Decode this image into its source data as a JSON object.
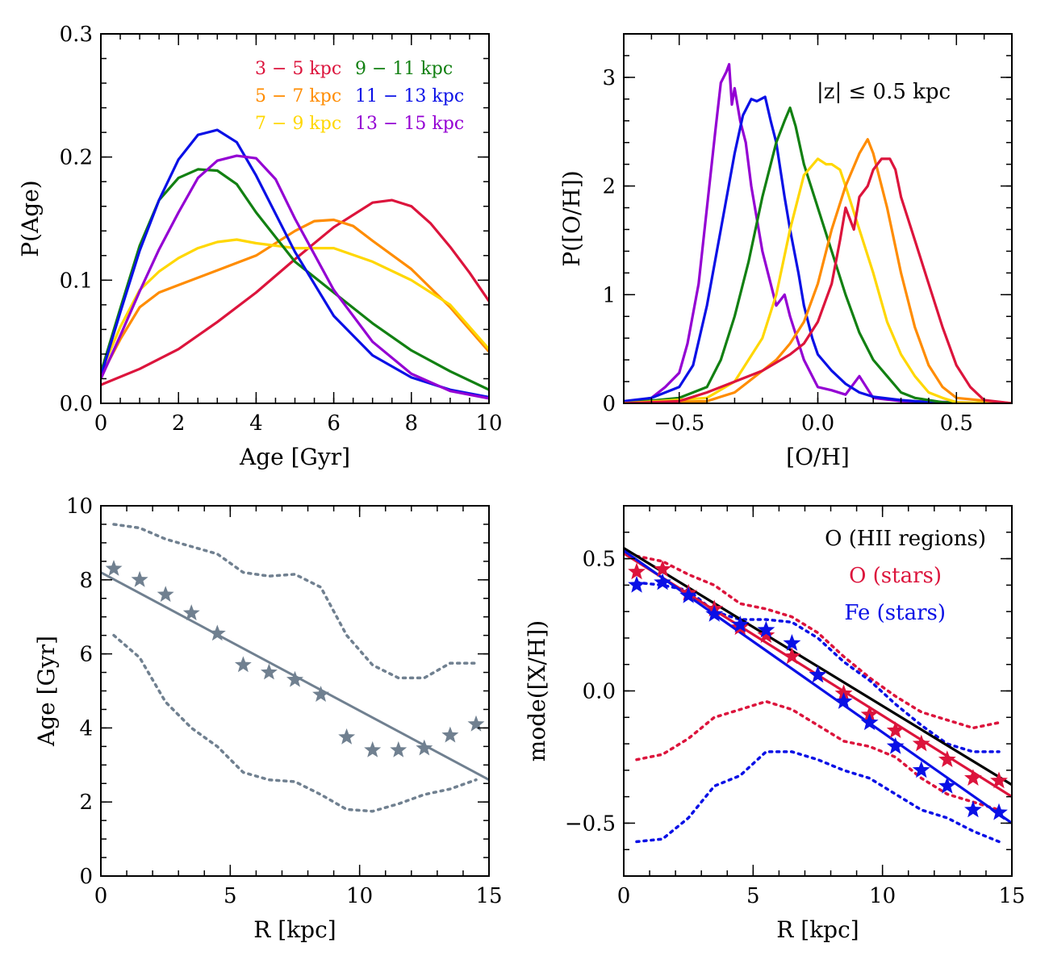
{
  "colors": {
    "crimson": "#dc143c",
    "green": "#128012",
    "orange": "#ff8c00",
    "blue": "#0a10e6",
    "gold": "#ffd700",
    "purple": "#9400d3",
    "slate": "#708090",
    "black": "#000000"
  },
  "chart_data": [
    {
      "id": "age_dist",
      "type": "line",
      "xlabel": "Age [Gyr]",
      "ylabel": "P(Age)",
      "xlim": [
        0,
        10
      ],
      "ylim": [
        0,
        0.3
      ],
      "xticks": [
        0,
        2,
        4,
        6,
        8,
        10
      ],
      "xticklabels": [
        "0",
        "2",
        "4",
        "6",
        "8",
        "10"
      ],
      "yticks": [
        0,
        0.1,
        0.2,
        0.3
      ],
      "yticklabels": [
        "0.0",
        "0.1",
        "0.2",
        "0.3"
      ],
      "legend": [
        {
          "label": "3 − 5 kpc",
          "color": "crimson"
        },
        {
          "label": "9 − 11 kpc",
          "color": "green"
        },
        {
          "label": "5 − 7 kpc",
          "color": "orange"
        },
        {
          "label": "11 − 13 kpc",
          "color": "blue"
        },
        {
          "label": "7 − 9 kpc",
          "color": "gold"
        },
        {
          "label": "13 − 15 kpc",
          "color": "purple"
        }
      ],
      "series": [
        {
          "color": "crimson",
          "x": [
            0,
            1,
            2,
            3,
            4,
            5,
            6,
            7,
            7.5,
            8,
            8.5,
            9,
            9.5,
            10
          ],
          "y": [
            0.015,
            0.028,
            0.044,
            0.066,
            0.09,
            0.117,
            0.143,
            0.163,
            0.165,
            0.16,
            0.146,
            0.127,
            0.106,
            0.083
          ]
        },
        {
          "color": "orange",
          "x": [
            0,
            0.5,
            1,
            1.5,
            2,
            3,
            4,
            5,
            5.5,
            6,
            6.5,
            7,
            8,
            9,
            10
          ],
          "y": [
            0.022,
            0.052,
            0.078,
            0.09,
            0.096,
            0.108,
            0.12,
            0.14,
            0.148,
            0.149,
            0.144,
            0.132,
            0.109,
            0.078,
            0.042
          ]
        },
        {
          "color": "gold",
          "x": [
            0,
            0.5,
            1,
            1.5,
            2,
            2.5,
            3,
            3.5,
            4,
            5,
            6,
            7,
            8,
            9,
            10
          ],
          "y": [
            0.025,
            0.062,
            0.092,
            0.107,
            0.118,
            0.126,
            0.131,
            0.133,
            0.13,
            0.126,
            0.126,
            0.115,
            0.1,
            0.08,
            0.044
          ]
        },
        {
          "color": "green",
          "x": [
            0,
            0.5,
            1,
            1.5,
            2,
            2.5,
            3,
            3.5,
            4,
            5,
            6,
            7,
            8,
            9,
            10
          ],
          "y": [
            0.025,
            0.077,
            0.128,
            0.165,
            0.183,
            0.19,
            0.189,
            0.178,
            0.155,
            0.115,
            0.09,
            0.065,
            0.043,
            0.026,
            0.011
          ]
        },
        {
          "color": "blue",
          "x": [
            0,
            0.5,
            1,
            1.5,
            2,
            2.5,
            3,
            3.5,
            4,
            5,
            6,
            7,
            8,
            9,
            10
          ],
          "y": [
            0.022,
            0.074,
            0.124,
            0.165,
            0.198,
            0.218,
            0.222,
            0.212,
            0.185,
            0.123,
            0.071,
            0.039,
            0.021,
            0.011,
            0.005
          ]
        },
        {
          "color": "purple",
          "x": [
            0,
            0.5,
            1,
            1.5,
            2,
            2.5,
            3,
            3.5,
            4,
            4.5,
            5,
            6,
            7,
            8,
            9,
            10
          ],
          "y": [
            0.02,
            0.055,
            0.091,
            0.125,
            0.155,
            0.183,
            0.197,
            0.201,
            0.199,
            0.182,
            0.15,
            0.092,
            0.05,
            0.024,
            0.01,
            0.004
          ]
        }
      ]
    },
    {
      "id": "oh_dist",
      "type": "line",
      "xlabel": "[O/H]",
      "ylabel": "P([O/H])",
      "annotation": "|z| ≤ 0.5 kpc",
      "xlim": [
        -0.7,
        0.7
      ],
      "ylim": [
        0,
        3.4
      ],
      "xticks": [
        -0.5,
        0,
        0.5
      ],
      "xticklabels": [
        "−0.5",
        "0.0",
        "0.5"
      ],
      "yticks": [
        0,
        1,
        2,
        3
      ],
      "yticklabels": [
        "0",
        "1",
        "2",
        "3"
      ],
      "series": [
        {
          "color": "purple",
          "x": [
            -0.7,
            -0.6,
            -0.55,
            -0.5,
            -0.47,
            -0.43,
            -0.4,
            -0.37,
            -0.35,
            -0.33,
            -0.32,
            -0.31,
            -0.3,
            -0.28,
            -0.26,
            -0.24,
            -0.22,
            -0.2,
            -0.17,
            -0.15,
            -0.12,
            -0.1,
            -0.05,
            0,
            0.05,
            0.1,
            0.15,
            0.2,
            0.3,
            0.7
          ],
          "y": [
            0.01,
            0.05,
            0.15,
            0.28,
            0.55,
            1.1,
            1.8,
            2.5,
            2.95,
            3.05,
            3.12,
            2.75,
            2.9,
            2.6,
            2.4,
            2.0,
            1.7,
            1.4,
            1.1,
            0.9,
            1.0,
            0.8,
            0.4,
            0.15,
            0.12,
            0.08,
            0.25,
            0.05,
            0.02,
            0.0
          ]
        },
        {
          "color": "blue",
          "x": [
            -0.7,
            -0.6,
            -0.5,
            -0.45,
            -0.4,
            -0.35,
            -0.3,
            -0.27,
            -0.24,
            -0.22,
            -0.19,
            -0.17,
            -0.15,
            -0.12,
            -0.1,
            -0.07,
            -0.05,
            -0.02,
            0,
            0.05,
            0.1,
            0.15,
            0.2,
            0.3,
            0.4,
            0.7
          ],
          "y": [
            0.02,
            0.05,
            0.15,
            0.35,
            0.9,
            1.6,
            2.3,
            2.65,
            2.8,
            2.78,
            2.82,
            2.6,
            2.4,
            1.9,
            1.6,
            1.2,
            0.9,
            0.6,
            0.45,
            0.3,
            0.18,
            0.1,
            0.06,
            0.03,
            0.01,
            0.0
          ]
        },
        {
          "color": "green",
          "x": [
            -0.7,
            -0.5,
            -0.4,
            -0.35,
            -0.3,
            -0.25,
            -0.2,
            -0.15,
            -0.12,
            -0.1,
            -0.08,
            -0.05,
            0,
            0.05,
            0.1,
            0.15,
            0.2,
            0.25,
            0.3,
            0.35,
            0.45,
            0.7
          ],
          "y": [
            0.0,
            0.05,
            0.15,
            0.4,
            0.8,
            1.3,
            1.9,
            2.4,
            2.6,
            2.72,
            2.55,
            2.2,
            1.8,
            1.4,
            1.0,
            0.65,
            0.4,
            0.25,
            0.1,
            0.05,
            0.01,
            0.0
          ]
        },
        {
          "color": "gold",
          "x": [
            -0.7,
            -0.4,
            -0.3,
            -0.2,
            -0.15,
            -0.1,
            -0.05,
            0,
            0.03,
            0.05,
            0.08,
            0.1,
            0.15,
            0.2,
            0.25,
            0.3,
            0.35,
            0.4,
            0.45,
            0.5,
            0.7
          ],
          "y": [
            0.0,
            0.05,
            0.2,
            0.6,
            1.0,
            1.6,
            2.1,
            2.25,
            2.2,
            2.2,
            2.15,
            2.0,
            1.6,
            1.2,
            0.75,
            0.45,
            0.25,
            0.1,
            0.05,
            0.01,
            0.0
          ]
        },
        {
          "color": "orange",
          "x": [
            -0.7,
            -0.4,
            -0.3,
            -0.25,
            -0.2,
            -0.15,
            -0.1,
            -0.05,
            0,
            0.05,
            0.1,
            0.15,
            0.18,
            0.2,
            0.25,
            0.3,
            0.35,
            0.4,
            0.45,
            0.5,
            0.7
          ],
          "y": [
            0.0,
            0.02,
            0.1,
            0.2,
            0.3,
            0.4,
            0.55,
            0.75,
            1.1,
            1.6,
            2.0,
            2.3,
            2.43,
            2.3,
            1.8,
            1.2,
            0.7,
            0.35,
            0.15,
            0.05,
            0.0
          ]
        },
        {
          "color": "crimson",
          "x": [
            -0.7,
            -0.5,
            -0.4,
            -0.3,
            -0.2,
            -0.1,
            -0.05,
            0,
            0.05,
            0.08,
            0.1,
            0.13,
            0.15,
            0.18,
            0.2,
            0.23,
            0.26,
            0.28,
            0.3,
            0.35,
            0.4,
            0.45,
            0.5,
            0.55,
            0.6,
            0.7
          ],
          "y": [
            0.0,
            0.02,
            0.1,
            0.2,
            0.3,
            0.45,
            0.55,
            0.75,
            1.1,
            1.5,
            1.8,
            1.6,
            1.9,
            2.0,
            2.15,
            2.25,
            2.25,
            2.15,
            1.9,
            1.5,
            1.1,
            0.7,
            0.35,
            0.15,
            0.03,
            0.0
          ]
        }
      ]
    },
    {
      "id": "age_r",
      "type": "scatter",
      "xlabel": "R [kpc]",
      "ylabel": "Age [Gyr]",
      "xlim": [
        0,
        15
      ],
      "ylim": [
        0,
        10
      ],
      "xticks": [
        0,
        5,
        10,
        15
      ],
      "xticklabels": [
        "0",
        "5",
        "10",
        "15"
      ],
      "yticks": [
        0,
        2,
        4,
        6,
        8,
        10
      ],
      "yticklabels": [
        "0",
        "2",
        "4",
        "6",
        "8",
        "10"
      ],
      "stars": {
        "color": "slate",
        "x": [
          0.5,
          1.5,
          2.5,
          3.5,
          4.5,
          5.5,
          6.5,
          7.5,
          8.5,
          9.5,
          10.5,
          11.5,
          12.5,
          13.5,
          14.5
        ],
        "y": [
          8.3,
          8.0,
          7.6,
          7.1,
          6.55,
          5.7,
          5.5,
          5.3,
          4.9,
          3.75,
          3.4,
          3.4,
          3.45,
          3.8,
          4.1
        ]
      },
      "fit": {
        "color": "slate",
        "x": [
          0,
          15
        ],
        "y": [
          8.2,
          2.6
        ]
      },
      "upper": {
        "color": "slate",
        "x": [
          0.5,
          1.5,
          2.5,
          3.5,
          4.5,
          5.5,
          6.5,
          7.5,
          8.5,
          9.5,
          10.5,
          11.5,
          12.5,
          13.5,
          14.5
        ],
        "y": [
          9.5,
          9.4,
          9.1,
          8.9,
          8.7,
          8.2,
          8.1,
          8.15,
          7.8,
          6.5,
          5.7,
          5.35,
          5.35,
          5.75,
          5.75
        ]
      },
      "lower": {
        "color": "slate",
        "x": [
          0.5,
          1.5,
          2.5,
          3.5,
          4.5,
          5.5,
          6.5,
          7.5,
          8.5,
          9.5,
          10.5,
          11.5,
          12.5,
          13.5,
          14.5
        ],
        "y": [
          6.5,
          5.9,
          4.7,
          4.0,
          3.5,
          2.8,
          2.6,
          2.55,
          2.2,
          1.8,
          1.75,
          1.95,
          2.2,
          2.35,
          2.6
        ]
      }
    },
    {
      "id": "mode_xh",
      "type": "scatter",
      "xlabel": "R [kpc]",
      "ylabel": "mode([X/H])",
      "xlim": [
        0,
        15
      ],
      "ylim": [
        -0.7,
        0.7
      ],
      "xticks": [
        0,
        5,
        10,
        15
      ],
      "xticklabels": [
        "0",
        "5",
        "10",
        "15"
      ],
      "yticks": [
        -0.5,
        0,
        0.5
      ],
      "yticklabels": [
        "−0.5",
        "0.0",
        "0.5"
      ],
      "legend": [
        {
          "label": "O (HII regions)",
          "color": "black"
        },
        {
          "label": "O (stars)",
          "color": "crimson"
        },
        {
          "label": "Fe (stars)",
          "color": "blue"
        }
      ],
      "lines": [
        {
          "color": "black",
          "x": [
            0,
            15
          ],
          "y": [
            0.54,
            -0.355
          ]
        },
        {
          "color": "crimson",
          "x": [
            0,
            15
          ],
          "y": [
            0.52,
            -0.4
          ]
        },
        {
          "color": "blue",
          "x": [
            0,
            15
          ],
          "y": [
            0.53,
            -0.5
          ]
        }
      ],
      "stars": [
        {
          "color": "crimson",
          "x": [
            0.5,
            1.5,
            2.5,
            3.5,
            4.5,
            5.5,
            6.5,
            7.5,
            8.5,
            9.5,
            10.5,
            11.5,
            12.5,
            13.5,
            14.5
          ],
          "y": [
            0.45,
            0.46,
            0.37,
            0.31,
            0.24,
            0.21,
            0.13,
            0.06,
            -0.01,
            -0.09,
            -0.15,
            -0.2,
            -0.26,
            -0.33,
            -0.34
          ]
        },
        {
          "color": "blue",
          "x": [
            0.5,
            1.5,
            2.5,
            3.5,
            4.5,
            5.5,
            6.5,
            7.5,
            8.5,
            9.5,
            10.5,
            11.5,
            12.5,
            13.5,
            14.5
          ],
          "y": [
            0.4,
            0.41,
            0.36,
            0.29,
            0.25,
            0.23,
            0.18,
            0.06,
            -0.04,
            -0.12,
            -0.21,
            -0.3,
            -0.36,
            -0.45,
            -0.46
          ]
        }
      ],
      "dotted": [
        {
          "color": "crimson",
          "x": [
            0.5,
            1.5,
            2.5,
            3.5,
            4.5,
            5.5,
            6.5,
            7.5,
            8.5,
            9.5,
            10.5,
            11.5,
            12.5,
            13.5,
            14.5
          ],
          "y": [
            0.51,
            0.49,
            0.44,
            0.4,
            0.33,
            0.31,
            0.28,
            0.22,
            0.13,
            0.05,
            -0.02,
            -0.08,
            -0.11,
            -0.14,
            -0.12
          ]
        },
        {
          "color": "crimson",
          "x": [
            0.5,
            1.5,
            2.5,
            3.5,
            4.5,
            5.5,
            6.5,
            7.5,
            8.5,
            9.5,
            10.5,
            11.5,
            12.5,
            13.5,
            14.5
          ],
          "y": [
            -0.26,
            -0.24,
            -0.18,
            -0.1,
            -0.07,
            -0.04,
            -0.07,
            -0.13,
            -0.19,
            -0.21,
            -0.25,
            -0.33,
            -0.39,
            -0.42,
            -0.45
          ]
        },
        {
          "color": "blue",
          "x": [
            0.5,
            1.5,
            2.5,
            3.5,
            4.5,
            5.5,
            6.5,
            7.5,
            8.5,
            9.5,
            10.5,
            11.5,
            12.5,
            13.5,
            14.5
          ],
          "y": [
            0.41,
            0.4,
            0.38,
            0.3,
            0.27,
            0.27,
            0.26,
            0.2,
            0.11,
            0.04,
            -0.05,
            -0.13,
            -0.2,
            -0.23,
            -0.23
          ]
        },
        {
          "color": "blue",
          "x": [
            0.5,
            1.5,
            2.5,
            3.5,
            4.5,
            5.5,
            6.5,
            7.5,
            8.5,
            9.5,
            10.5,
            11.5,
            12.5,
            13.5,
            14.5
          ],
          "y": [
            -0.57,
            -0.56,
            -0.48,
            -0.36,
            -0.32,
            -0.23,
            -0.23,
            -0.26,
            -0.3,
            -0.33,
            -0.39,
            -0.45,
            -0.48,
            -0.53,
            -0.57
          ]
        }
      ]
    }
  ]
}
